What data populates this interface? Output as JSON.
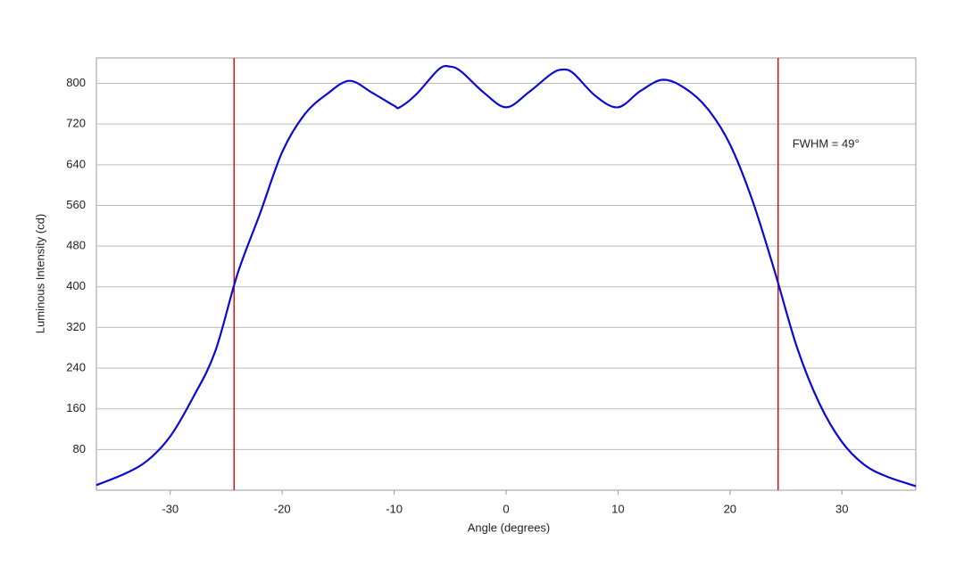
{
  "chart_data": {
    "type": "line",
    "x_label": "Angle (degrees)",
    "y_label": "Luminous Intensity (cd)",
    "annotation": "FWHM = 49°",
    "x": [
      -36.6,
      -34,
      -32,
      -30,
      -28,
      -26,
      -24,
      -22,
      -20,
      -18,
      -16,
      -14,
      -12,
      -10,
      -9.5,
      -8,
      -6,
      -5,
      -4,
      -2,
      0,
      2,
      4,
      5,
      6,
      8,
      10,
      12,
      14,
      16,
      18,
      20,
      22,
      24,
      26,
      28,
      30,
      32,
      34,
      36.6
    ],
    "series": [
      {
        "name": "Luminous Intensity",
        "color": "#0a0ad2",
        "values": [
          10,
          33,
          59,
          106,
          181,
          272,
          425,
          543,
          665,
          739,
          779,
          805,
          782,
          756,
          753,
          779,
          828,
          833,
          823,
          782,
          753,
          782,
          818,
          827,
          820,
          775,
          753,
          785,
          807,
          790,
          750,
          680,
          570,
          430,
          280,
          170,
          95,
          50,
          27,
          8
        ]
      }
    ],
    "vlines": {
      "color": "#e01010",
      "x": [
        -24.3,
        24.3
      ]
    },
    "xlim": [
      -36.6,
      36.6
    ],
    "ylim": [
      0,
      850
    ],
    "xticks": [
      -30,
      -20,
      -10,
      0,
      10,
      20,
      30
    ],
    "yticks": [
      80,
      160,
      240,
      320,
      400,
      480,
      560,
      640,
      720,
      800
    ],
    "grid": true
  }
}
